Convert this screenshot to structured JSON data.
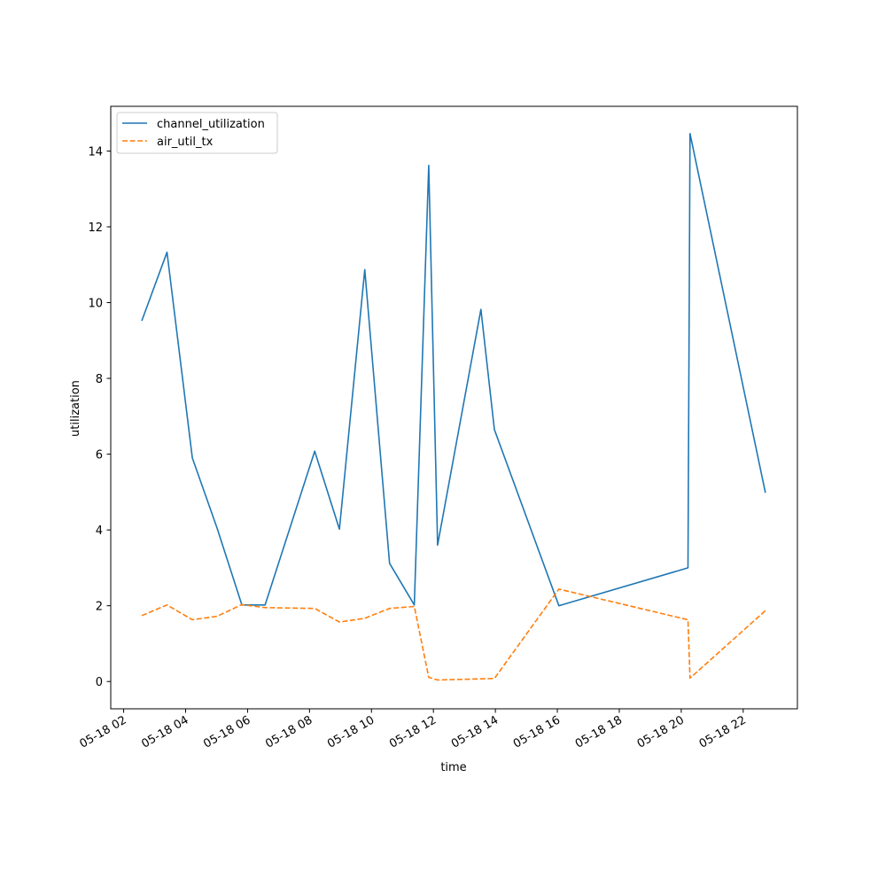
{
  "chart_data": {
    "type": "line",
    "title": "",
    "xlabel": "time",
    "ylabel": "utilization",
    "x_axis": {
      "type": "time",
      "range": [
        "2021-05-18 01:35",
        "2021-05-18 23:45"
      ],
      "ticks": [
        "2021-05-18 02:00",
        "2021-05-18 04:00",
        "2021-05-18 06:00",
        "2021-05-18 08:00",
        "2021-05-18 10:00",
        "2021-05-18 12:00",
        "2021-05-18 14:00",
        "2021-05-18 16:00",
        "2021-05-18 18:00",
        "2021-05-18 20:00",
        "2021-05-18 22:00"
      ],
      "tick_labels": [
        "05-18 02",
        "05-18 04",
        "05-18 06",
        "05-18 08",
        "05-18 10",
        "05-18 12",
        "05-18 14",
        "05-18 16",
        "05-18 18",
        "05-18 20",
        "05-18 22"
      ]
    },
    "y_axis": {
      "range": [
        -0.72,
        15.18
      ],
      "ticks": [
        0,
        2,
        4,
        6,
        8,
        10,
        12,
        14
      ],
      "tick_labels": [
        "0",
        "2",
        "4",
        "6",
        "8",
        "10",
        "12",
        "14"
      ]
    },
    "grid": false,
    "legend": "top-left",
    "series": [
      {
        "name": "channel_utilization",
        "color": "#1f77b4",
        "dash": "solid",
        "points": [
          [
            "2021-05-18 02:35",
            9.52
          ],
          [
            "2021-05-18 03:24",
            11.33
          ],
          [
            "2021-05-18 04:13",
            5.9
          ],
          [
            "2021-05-18 05:01",
            4.05
          ],
          [
            "2021-05-18 05:49",
            2.02
          ],
          [
            "2021-05-18 06:34",
            2.02
          ],
          [
            "2021-05-18 08:10",
            6.08
          ],
          [
            "2021-05-18 08:58",
            4.02
          ],
          [
            "2021-05-18 09:47",
            10.87
          ],
          [
            "2021-05-18 10:35",
            3.12
          ],
          [
            "2021-05-18 11:23",
            2.02
          ],
          [
            "2021-05-18 11:51",
            13.62
          ],
          [
            "2021-05-18 12:08",
            3.6
          ],
          [
            "2021-05-18 13:32",
            9.82
          ],
          [
            "2021-05-18 13:58",
            6.65
          ],
          [
            "2021-05-18 16:03",
            2.0
          ],
          [
            "2021-05-18 20:13",
            3.0
          ],
          [
            "2021-05-18 20:17",
            14.46
          ],
          [
            "2021-05-18 22:43",
            4.98
          ]
        ]
      },
      {
        "name": "air_util_tx",
        "color": "#ff7f0e",
        "dash": "dashed",
        "points": [
          [
            "2021-05-18 02:35",
            1.74
          ],
          [
            "2021-05-18 03:24",
            2.02
          ],
          [
            "2021-05-18 04:13",
            1.63
          ],
          [
            "2021-05-18 05:01",
            1.72
          ],
          [
            "2021-05-18 05:49",
            2.03
          ],
          [
            "2021-05-18 06:34",
            1.95
          ],
          [
            "2021-05-18 08:10",
            1.93
          ],
          [
            "2021-05-18 08:58",
            1.57
          ],
          [
            "2021-05-18 09:47",
            1.67
          ],
          [
            "2021-05-18 10:35",
            1.93
          ],
          [
            "2021-05-18 11:23",
            1.98
          ],
          [
            "2021-05-18 11:51",
            0.11
          ],
          [
            "2021-05-18 12:08",
            0.04
          ],
          [
            "2021-05-18 13:58",
            0.08
          ],
          [
            "2021-05-18 16:03",
            2.44
          ],
          [
            "2021-05-18 20:13",
            1.63
          ],
          [
            "2021-05-18 20:17",
            0.09
          ],
          [
            "2021-05-18 22:43",
            1.87
          ]
        ]
      }
    ]
  }
}
